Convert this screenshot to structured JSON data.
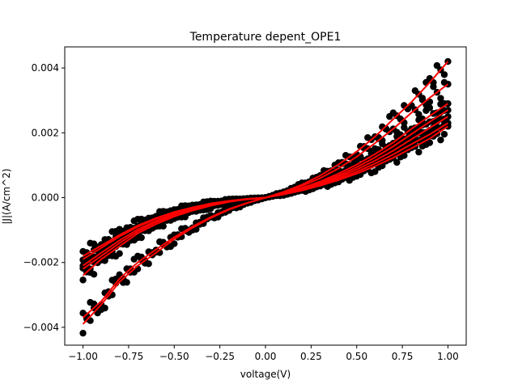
{
  "chart_data": {
    "type": "scatter",
    "title": "Temperature depent_OPE1",
    "xlabel": "voltage(V)",
    "ylabel": "|J|(A/cm^2)",
    "xlim": [
      -1.1,
      1.1
    ],
    "ylim": [
      -0.00455,
      0.00465
    ],
    "xticks": [
      -1.0,
      -0.75,
      -0.5,
      -0.25,
      0.0,
      0.25,
      0.5,
      0.75,
      1.0
    ],
    "xtick_labels": [
      "−1.00",
      "−0.75",
      "−0.50",
      "−0.25",
      "0.00",
      "0.25",
      "0.50",
      "0.75",
      "1.00"
    ],
    "yticks": [
      -0.004,
      -0.002,
      0.0,
      0.002,
      0.004
    ],
    "ytick_labels": [
      "−0.004",
      "−0.002",
      "0.000",
      "0.002",
      "0.004"
    ],
    "grid": false,
    "legend": "none",
    "marker_color": "#000000",
    "fit_color": "#ff0000",
    "series": [
      {
        "x": [
          -1.0,
          -0.9,
          -0.8,
          -0.7,
          -0.6,
          -0.5,
          -0.4,
          -0.3,
          -0.2,
          -0.1,
          0.0,
          0.1,
          0.2,
          0.3,
          0.4,
          0.5,
          0.6,
          0.7,
          0.8,
          0.9,
          1.0
        ],
        "y": [
          -0.0039,
          -0.0033,
          -0.0026,
          -0.0021,
          -0.0017,
          -0.00128,
          -0.00093,
          -0.00063,
          -0.00037,
          -0.00017,
          0.0,
          0.00018,
          0.0004,
          0.00068,
          0.00102,
          0.00142,
          0.00188,
          0.00242,
          0.00295,
          0.00355,
          0.0042
        ]
      },
      {
        "x": [
          -1.0,
          -0.9,
          -0.8,
          -0.7,
          -0.6,
          -0.5,
          -0.4,
          -0.3,
          -0.2,
          -0.1,
          0.0,
          0.1,
          0.2,
          0.3,
          0.4,
          0.5,
          0.6,
          0.7,
          0.8,
          0.9,
          1.0
        ],
        "y": [
          -0.0037,
          -0.0032,
          -0.0025,
          -0.002,
          -0.0016,
          -0.00122,
          -0.00089,
          -0.0006,
          -0.00035,
          -0.00016,
          0.0,
          0.00016,
          0.00036,
          0.0006,
          0.0009,
          0.00126,
          0.00168,
          0.00212,
          0.00262,
          0.00308,
          0.0035
        ]
      },
      {
        "x": [
          -1.0,
          -0.9,
          -0.8,
          -0.7,
          -0.6,
          -0.5,
          -0.4,
          -0.3,
          -0.2,
          -0.1,
          0.0,
          0.1,
          0.2,
          0.3,
          0.4,
          0.5,
          0.6,
          0.7,
          0.8,
          0.9,
          1.0
        ],
        "y": [
          -0.0024,
          -0.0019,
          -0.0015,
          -0.0011,
          -0.00082,
          -0.00058,
          -0.0004,
          -0.00025,
          -0.00013,
          -5e-05,
          0.0,
          0.00014,
          0.0003,
          0.0005,
          0.00074,
          0.00102,
          0.00134,
          0.0017,
          0.00212,
          0.00252,
          0.0029
        ]
      },
      {
        "x": [
          -1.0,
          -0.9,
          -0.8,
          -0.7,
          -0.6,
          -0.5,
          -0.4,
          -0.3,
          -0.2,
          -0.1,
          0.0,
          0.1,
          0.2,
          0.3,
          0.4,
          0.5,
          0.6,
          0.7,
          0.8,
          0.9,
          1.0
        ],
        "y": [
          -0.0022,
          -0.0018,
          -0.0014,
          -0.00104,
          -0.00076,
          -0.00054,
          -0.00037,
          -0.00023,
          -0.00012,
          -5e-05,
          0.0,
          0.00013,
          0.00028,
          0.00046,
          0.00068,
          0.00094,
          0.00124,
          0.00158,
          0.00196,
          0.00234,
          0.0027
        ]
      },
      {
        "x": [
          -1.0,
          -0.9,
          -0.8,
          -0.7,
          -0.6,
          -0.5,
          -0.4,
          -0.3,
          -0.2,
          -0.1,
          0.0,
          0.1,
          0.2,
          0.3,
          0.4,
          0.5,
          0.6,
          0.7,
          0.8,
          0.9,
          1.0
        ],
        "y": [
          -0.0021,
          -0.0017,
          -0.00132,
          -0.00098,
          -0.00072,
          -0.0005,
          -0.00034,
          -0.00021,
          -0.00011,
          -4e-05,
          0.0,
          0.00012,
          0.00026,
          0.00043,
          0.00063,
          0.00087,
          0.00114,
          0.00145,
          0.0018,
          0.00215,
          0.0025
        ]
      },
      {
        "x": [
          -1.0,
          -0.9,
          -0.8,
          -0.7,
          -0.6,
          -0.5,
          -0.4,
          -0.3,
          -0.2,
          -0.1,
          0.0,
          0.1,
          0.2,
          0.3,
          0.4,
          0.5,
          0.6,
          0.7,
          0.8,
          0.9,
          1.0
        ],
        "y": [
          -0.0019,
          -0.00155,
          -0.0012,
          -0.0009,
          -0.00066,
          -0.00046,
          -0.00031,
          -0.00019,
          -0.0001,
          -4e-05,
          0.0,
          0.00011,
          0.00024,
          0.0004,
          0.00058,
          0.0008,
          0.00105,
          0.00133,
          0.00165,
          0.00195,
          0.0023
        ]
      },
      {
        "x": [
          -1.0,
          -0.9,
          -0.8,
          -0.7,
          -0.6,
          -0.5,
          -0.4,
          -0.3,
          -0.2,
          -0.1,
          0.0,
          0.1,
          0.2,
          0.3,
          0.4,
          0.5,
          0.6,
          0.7,
          0.8,
          0.9,
          1.0
        ],
        "y": [
          -0.0018,
          -0.00148,
          -0.00115,
          -0.00086,
          -0.00063,
          -0.00044,
          -0.0003,
          -0.00018,
          -0.0001,
          -4e-05,
          0.0,
          0.0001,
          0.00022,
          0.00037,
          0.00054,
          0.00074,
          0.00097,
          0.00123,
          0.00152,
          0.00182,
          0.0022
        ]
      }
    ]
  }
}
